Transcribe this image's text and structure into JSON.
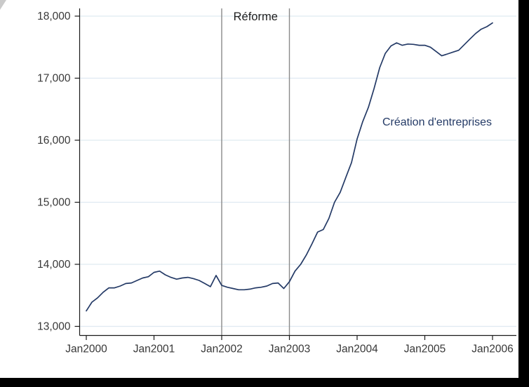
{
  "chart_data": {
    "type": "line",
    "title": "",
    "xlabel": "",
    "ylabel": "",
    "grid": true,
    "x_start_label": "Jan2000",
    "x_frequency": "monthly",
    "x_tick_labels": [
      "Jan2000",
      "Jan2001",
      "Jan2002",
      "Jan2003",
      "Jan2004",
      "Jan2005",
      "Jan2006"
    ],
    "x_tick_month_index": [
      0,
      12,
      24,
      36,
      48,
      60,
      72
    ],
    "y_ticks": [
      13000,
      14000,
      15000,
      16000,
      17000,
      18000
    ],
    "y_tick_labels": [
      "13,000",
      "14,000",
      "15,000",
      "16,000",
      "17,000",
      "18,000"
    ],
    "ylim": [
      12870,
      18130
    ],
    "series": [
      {
        "name": "Création d'entreprises",
        "color": "#243a66",
        "values": [
          13250,
          13390,
          13460,
          13550,
          13620,
          13620,
          13650,
          13690,
          13700,
          13740,
          13780,
          13800,
          13870,
          13890,
          13830,
          13790,
          13760,
          13780,
          13790,
          13770,
          13740,
          13690,
          13640,
          13820,
          13660,
          13630,
          13610,
          13590,
          13590,
          13600,
          13620,
          13630,
          13650,
          13690,
          13700,
          13610,
          13720,
          13890,
          14000,
          14150,
          14330,
          14520,
          14560,
          14740,
          15000,
          15160,
          15400,
          15640,
          16020,
          16300,
          16530,
          16830,
          17170,
          17400,
          17520,
          17570,
          17530,
          17550,
          17545,
          17530,
          17530,
          17500,
          17430,
          17360,
          17390,
          17420,
          17450,
          17540,
          17630,
          17720,
          17790,
          17830,
          17890
        ]
      }
    ],
    "reference_lines": [
      {
        "label": "Jan2002",
        "month_index": 24
      },
      {
        "label": "Jan2003",
        "month_index": 36
      }
    ],
    "annotations": [
      {
        "id": "reform-label",
        "text": "Réforme",
        "color": "#1f1f1f",
        "placement": "top-center-between-reference-lines"
      },
      {
        "id": "series-label",
        "text": "Création d'entreprises",
        "color": "#243a66",
        "placement": "right-of-curve-mid"
      }
    ]
  },
  "colors": {
    "plot_background": "#ffffff",
    "grid_line": "#dfe9f1",
    "axis_line": "#1a1a1a",
    "tick_label": "#383838",
    "reference_line": "#8a8a8a",
    "series_line": "#243a66",
    "frame_black": "#000000",
    "corner_artifact": "#b4b4b4"
  }
}
